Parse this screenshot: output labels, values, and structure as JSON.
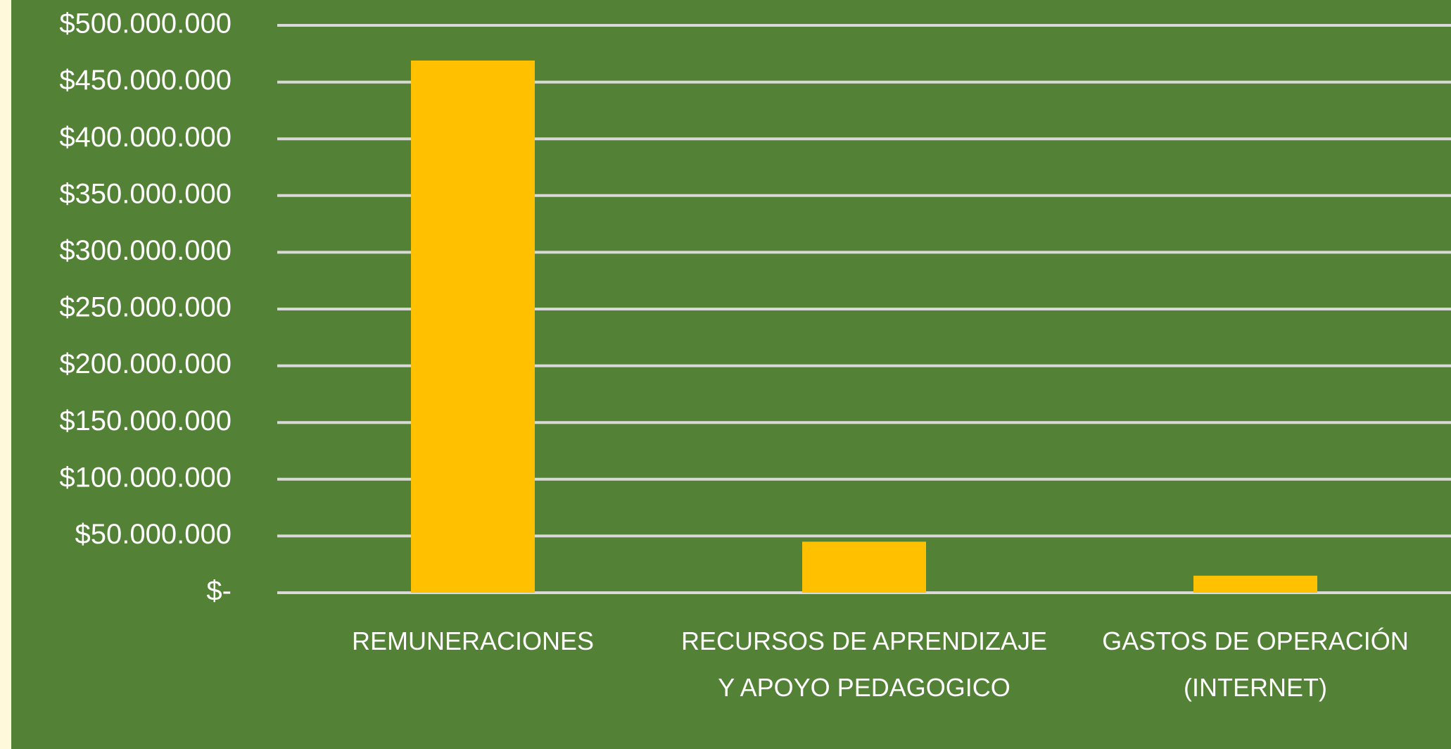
{
  "chart_data": {
    "type": "bar",
    "categories": [
      "REMUNERACIONES",
      "RECURSOS DE APRENDIZAJE Y APOYO PEDAGOGICO",
      "GASTOS DE OPERACIÓN (INTERNET)"
    ],
    "values": [
      469000000,
      45000000,
      15000000
    ],
    "color": "#ffc000",
    "ylim": [
      0,
      500000000
    ],
    "yticks": [
      {
        "value": 0,
        "label": "$-"
      },
      {
        "value": 50000000,
        "label": "$50.000.000"
      },
      {
        "value": 100000000,
        "label": "$100.000.000"
      },
      {
        "value": 150000000,
        "label": "$150.000.000"
      },
      {
        "value": 200000000,
        "label": "$200.000.000"
      },
      {
        "value": 250000000,
        "label": "$250.000.000"
      },
      {
        "value": 300000000,
        "label": "$300.000.000"
      },
      {
        "value": 350000000,
        "label": "$350.000.000"
      },
      {
        "value": 400000000,
        "label": "$400.000.000"
      },
      {
        "value": 450000000,
        "label": "$450.000.000"
      },
      {
        "value": 500000000,
        "label": "$500.000.000"
      }
    ],
    "grid": true
  }
}
